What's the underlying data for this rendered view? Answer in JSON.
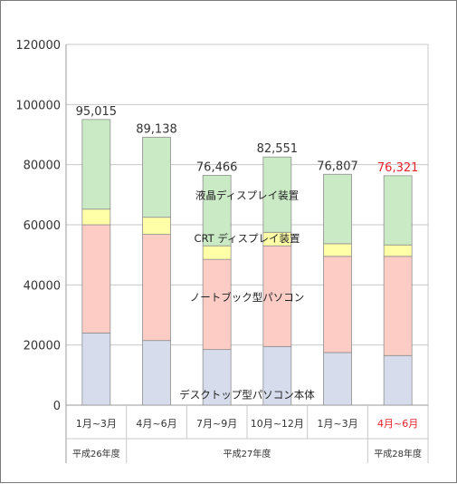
{
  "chart_data": {
    "type": "bar",
    "stacked": true,
    "categories": [
      "1月~3月",
      "4月~6月",
      "7月~9月",
      "10月~12月",
      "1月~3月",
      "4月~6月"
    ],
    "highlight_category_index": 5,
    "highlight_color": "#e8222a",
    "period_groups": [
      {
        "label": "平成26年度",
        "span": 1
      },
      {
        "label": "平成27年度",
        "span": 4
      },
      {
        "label": "平成28年度",
        "span": 1
      }
    ],
    "series": [
      {
        "name": "デスクトップ型パソコン本体",
        "color": "#d7dcec",
        "values": [
          24000,
          21500,
          18500,
          19500,
          17500,
          16500
        ]
      },
      {
        "name": "ノートブック型パソコン",
        "color": "#fdcdc5",
        "values": [
          36000,
          35300,
          30000,
          33500,
          32000,
          33000
        ]
      },
      {
        "name": "CRT ディスプレイ装置",
        "color": "#ffffa8",
        "values": [
          5200,
          5700,
          4500,
          4500,
          4200,
          3800
        ]
      },
      {
        "name": "液晶ディスプレイ装置",
        "color": "#c9eac5",
        "values": [
          29815,
          26638,
          23466,
          25051,
          23107,
          23021
        ]
      }
    ],
    "totals": [
      95015,
      89138,
      76466,
      82551,
      76807,
      76321
    ],
    "total_labels": [
      "95,015",
      "89,138",
      "76,466",
      "82,551",
      "76,807",
      "76,321"
    ],
    "yticks": [
      "0",
      "20000",
      "40000",
      "60000",
      "80000",
      "100000",
      "120000"
    ],
    "ylim": [
      0,
      120000
    ],
    "grid": true,
    "legend": "inline labels on bars"
  }
}
